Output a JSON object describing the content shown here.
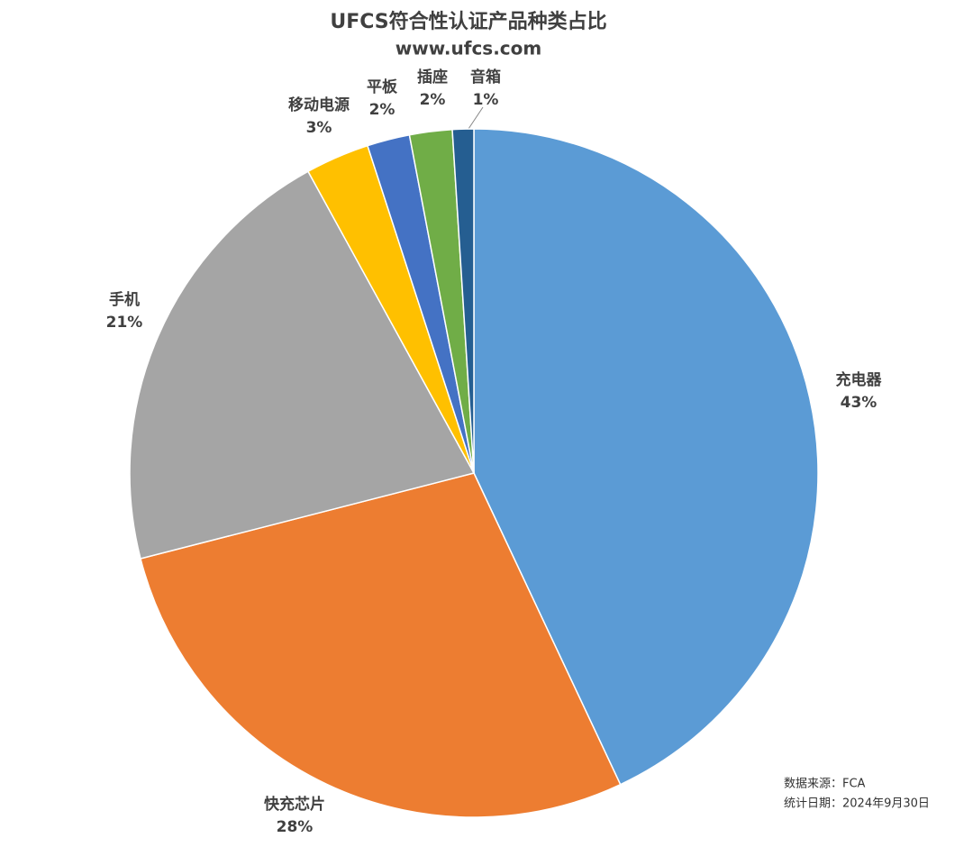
{
  "chart_data": {
    "type": "pie",
    "title": "UFCS符合性认证产品种类占比",
    "subtitle": "www.ufcs.com",
    "categories": [
      "充电器",
      "快充芯片",
      "手机",
      "移动电源",
      "平板",
      "插座",
      "音箱"
    ],
    "values": [
      43,
      28,
      21,
      3,
      2,
      2,
      1
    ],
    "value_labels": [
      "43%",
      "28%",
      "21%",
      "3%",
      "2%",
      "2%",
      "1%"
    ],
    "colors": [
      "#5b9bd5",
      "#ed7d31",
      "#a5a5a5",
      "#ffc000",
      "#4472c4",
      "#70ad47",
      "#255e91"
    ],
    "annotations": [
      "数据来源：FCA",
      "统计日期：2024年9月30日"
    ]
  }
}
